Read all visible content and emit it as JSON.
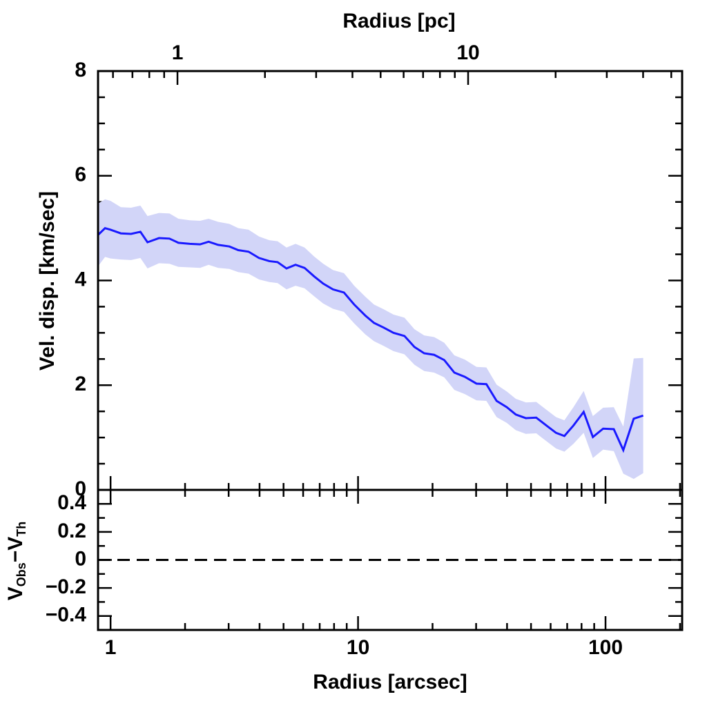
{
  "chart_data": [
    {
      "type": "line",
      "ylabel": "Vel. disp. [km/sec]",
      "x2label": "Radius [pc]",
      "xscale": "log",
      "x2lim": [
        0.533,
        54.5
      ],
      "x2ticks": [
        1,
        10
      ],
      "x2minorticks": [
        0.6,
        0.7,
        0.8,
        0.9,
        2,
        3,
        4,
        5,
        6,
        7,
        8,
        9,
        20,
        30,
        40,
        50
      ],
      "xlim": [
        0.89,
        204
      ],
      "ylim": [
        0,
        8
      ],
      "yticks": [
        0,
        2,
        4,
        6,
        8
      ],
      "yminorticks": [
        0.5,
        1,
        1.5,
        2.5,
        3,
        3.5,
        4.5,
        5,
        5.5,
        6.5,
        7,
        7.5
      ],
      "series": [
        {
          "color": "#1a1aff",
          "band_color": "#d2d5f8",
          "x": [
            0.89,
            0.95,
            1.0,
            1.1,
            1.21,
            1.32,
            1.41,
            1.57,
            1.73,
            1.88,
            2.09,
            2.3,
            2.49,
            2.72,
            3.02,
            3.28,
            3.61,
            3.98,
            4.38,
            4.73,
            5.14,
            5.59,
            6.08,
            6.64,
            7.23,
            7.92,
            8.77,
            9.65,
            10.7,
            11.6,
            12.7,
            13.9,
            15.4,
            16.9,
            18.5,
            20.3,
            22.3,
            24.5,
            27.0,
            30.1,
            33.0,
            36.3,
            39.9,
            43.4,
            47.7,
            52.5,
            57.7,
            63.1,
            68.2,
            74.2,
            81.6,
            88.9,
            97.8,
            108,
            118,
            130,
            142
          ],
          "values": [
            4.87,
            5.0,
            4.97,
            4.9,
            4.89,
            4.93,
            4.73,
            4.81,
            4.8,
            4.72,
            4.7,
            4.69,
            4.74,
            4.68,
            4.65,
            4.58,
            4.55,
            4.43,
            4.37,
            4.35,
            4.23,
            4.3,
            4.24,
            4.08,
            3.94,
            3.83,
            3.77,
            3.54,
            3.33,
            3.19,
            3.1,
            3.0,
            2.94,
            2.73,
            2.61,
            2.58,
            2.48,
            2.24,
            2.16,
            2.03,
            2.02,
            1.7,
            1.58,
            1.44,
            1.37,
            1.38,
            1.23,
            1.09,
            1.03,
            1.23,
            1.49,
            1.01,
            1.17,
            1.16,
            0.76,
            1.36,
            1.42
          ],
          "errors": [
            0.6,
            0.55,
            0.55,
            0.5,
            0.5,
            0.5,
            0.5,
            0.48,
            0.48,
            0.46,
            0.45,
            0.45,
            0.44,
            0.44,
            0.43,
            0.42,
            0.42,
            0.41,
            0.4,
            0.4,
            0.4,
            0.4,
            0.39,
            0.38,
            0.38,
            0.37,
            0.37,
            0.36,
            0.36,
            0.35,
            0.35,
            0.35,
            0.35,
            0.34,
            0.34,
            0.34,
            0.33,
            0.33,
            0.33,
            0.32,
            0.32,
            0.31,
            0.3,
            0.3,
            0.3,
            0.3,
            0.3,
            0.3,
            0.3,
            0.35,
            0.4,
            0.4,
            0.4,
            0.42,
            0.45,
            1.15,
            1.1
          ]
        }
      ]
    },
    {
      "type": "residual",
      "xlabel": "Radius [arcsec]",
      "xscale": "log",
      "xlim": [
        0.89,
        204
      ],
      "xticks": [
        1,
        10,
        100
      ],
      "xminorticks": [
        2,
        3,
        4,
        5,
        6,
        7,
        8,
        9,
        20,
        30,
        40,
        50,
        60,
        70,
        80,
        90,
        200
      ],
      "ylim": [
        -0.5,
        0.5
      ],
      "yticks": [
        {
          "value": -0.4,
          "label": "−0.4"
        },
        {
          "value": -0.2,
          "label": "−0.2"
        },
        0,
        0.2,
        0.4
      ],
      "yminorticks": [
        -0.3,
        -0.1,
        0.1,
        0.3
      ],
      "ylabel_parts": [
        "V",
        "Obs",
        "−V",
        "Th"
      ],
      "hline": 0
    }
  ]
}
